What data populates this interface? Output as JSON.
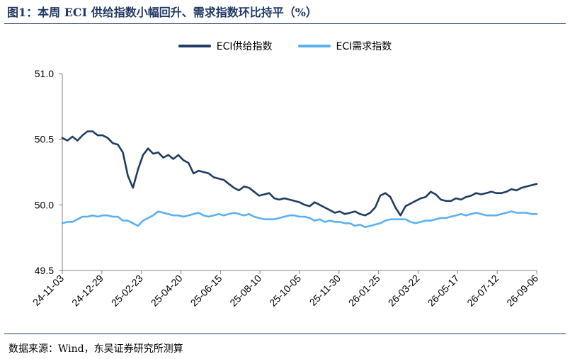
{
  "figure": {
    "title": "图1：本周 ECI 供给指数小幅回升、需求指数环比持平（%）",
    "source": "数据来源：Wind，东吴证券研究所测算"
  },
  "chart_data": {
    "type": "line",
    "title": "",
    "xlabel": "",
    "ylabel": "",
    "ylim": [
      49.5,
      51.0
    ],
    "yticks": [
      "49.5",
      "50.0",
      "50.5",
      "51.0"
    ],
    "xticks": [
      "24-11-03",
      "24-12-29",
      "25-02-23",
      "25-04-20",
      "25-06-15",
      "25-08-10",
      "25-10-05",
      "25-11-30",
      "26-01-25",
      "26-03-22",
      "26-05-17",
      "26-07-12",
      "26-09-06"
    ],
    "grid": false,
    "legend_position": "top-center",
    "series": [
      {
        "name": "ECI供给指数",
        "color": "#1f3c63",
        "values": [
          50.51,
          50.49,
          50.52,
          50.49,
          50.53,
          50.56,
          50.56,
          50.53,
          50.53,
          50.51,
          50.47,
          50.46,
          50.4,
          50.22,
          50.13,
          50.27,
          50.38,
          50.43,
          50.39,
          50.4,
          50.36,
          50.38,
          50.35,
          50.38,
          50.34,
          50.32,
          50.24,
          50.26,
          50.25,
          50.24,
          50.21,
          50.2,
          50.19,
          50.16,
          50.13,
          50.11,
          50.14,
          50.13,
          50.1,
          50.07,
          50.08,
          50.09,
          50.05,
          50.04,
          50.05,
          50.04,
          50.03,
          50.02,
          50.0,
          49.99,
          50.02,
          50.0,
          49.98,
          49.96,
          49.94,
          49.95,
          49.93,
          49.94,
          49.95,
          49.93,
          49.92,
          49.94,
          49.98,
          50.07,
          50.09,
          50.06,
          49.98,
          49.92,
          49.99,
          50.01,
          50.03,
          50.05,
          50.06,
          50.1,
          50.08,
          50.04,
          50.03,
          50.03,
          50.05,
          50.04,
          50.06,
          50.07,
          50.09,
          50.08,
          50.09,
          50.1,
          50.09,
          50.09,
          50.1,
          50.12,
          50.11,
          50.13,
          50.14,
          50.15,
          50.16
        ]
      },
      {
        "name": "ECI需求指数",
        "color": "#5bb0f0",
        "values": [
          49.86,
          49.87,
          49.87,
          49.89,
          49.91,
          49.91,
          49.92,
          49.91,
          49.92,
          49.92,
          49.91,
          49.91,
          49.88,
          49.88,
          49.86,
          49.84,
          49.88,
          49.9,
          49.92,
          49.95,
          49.94,
          49.93,
          49.92,
          49.92,
          49.91,
          49.92,
          49.93,
          49.94,
          49.92,
          49.91,
          49.92,
          49.93,
          49.92,
          49.93,
          49.94,
          49.93,
          49.92,
          49.93,
          49.91,
          49.9,
          49.89,
          49.89,
          49.89,
          49.9,
          49.91,
          49.92,
          49.92,
          49.91,
          49.91,
          49.9,
          49.88,
          49.89,
          49.87,
          49.88,
          49.87,
          49.87,
          49.86,
          49.86,
          49.84,
          49.85,
          49.83,
          49.84,
          49.85,
          49.86,
          49.88,
          49.89,
          49.89,
          49.89,
          49.89,
          49.87,
          49.86,
          49.87,
          49.88,
          49.88,
          49.89,
          49.9,
          49.9,
          49.91,
          49.92,
          49.93,
          49.92,
          49.93,
          49.94,
          49.93,
          49.92,
          49.92,
          49.92,
          49.93,
          49.94,
          49.95,
          49.94,
          49.94,
          49.94,
          49.93,
          49.93
        ]
      }
    ]
  }
}
